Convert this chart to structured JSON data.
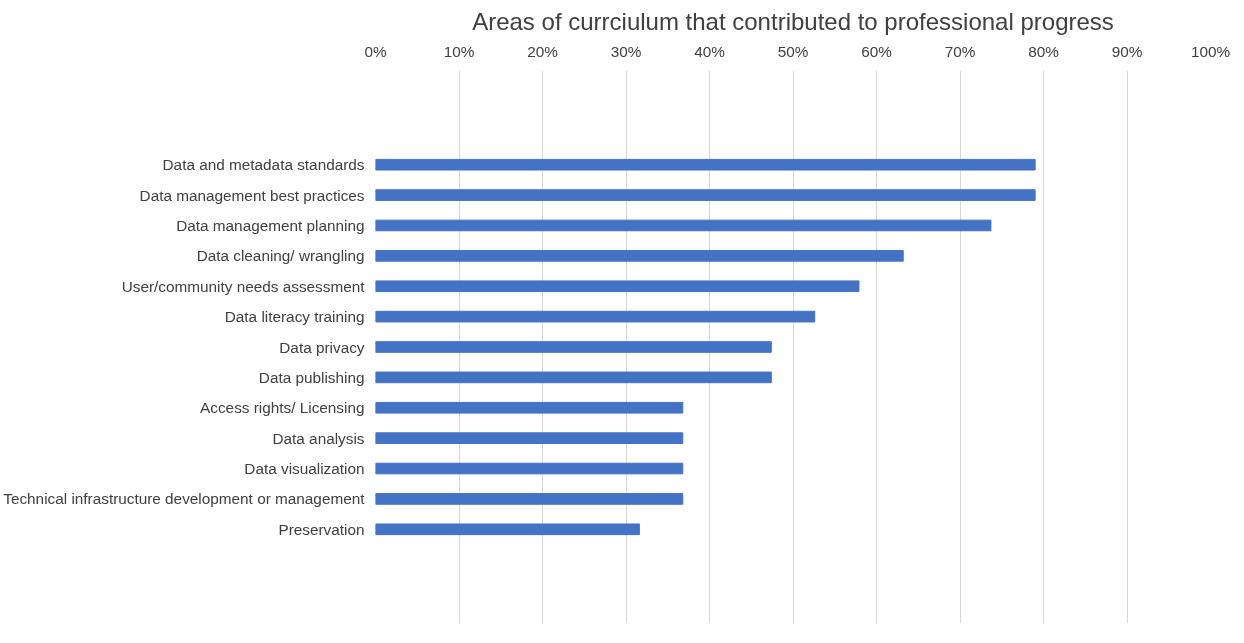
{
  "chart_data": {
    "type": "bar",
    "orientation": "horizontal",
    "title": "Areas of currciulum that contributed to professional progress",
    "categories": [
      "Data and metadata standards",
      "Data management best practices",
      "Data management planning",
      "Data cleaning/ wrangling",
      "User/community needs assessment",
      "Data literacy training",
      "Data privacy",
      "Data publishing",
      "Access rights/ Licensing",
      "Data analysis",
      "Data visualization",
      "Technical infrastructure development or management",
      "Preservation"
    ],
    "values": [
      0.79,
      0.79,
      0.737,
      0.632,
      0.579,
      0.526,
      0.474,
      0.474,
      0.368,
      0.368,
      0.368,
      0.368,
      0.316
    ],
    "color": "#4472c4",
    "xlim": [
      0,
      1
    ],
    "xticks": [
      {
        "value": 0,
        "label": "0%"
      },
      {
        "value": 0.1,
        "label": "10%"
      },
      {
        "value": 0.2,
        "label": "20%"
      },
      {
        "value": 0.3,
        "label": "30%"
      },
      {
        "value": 0.4,
        "label": "40%"
      },
      {
        "value": 0.5,
        "label": "50%"
      },
      {
        "value": 0.6,
        "label": "60%"
      },
      {
        "value": 0.7,
        "label": "70%"
      },
      {
        "value": 0.8,
        "label": "80%"
      },
      {
        "value": 0.9,
        "label": "90%"
      },
      {
        "value": 1,
        "label": "100%"
      }
    ],
    "grid": "x"
  }
}
